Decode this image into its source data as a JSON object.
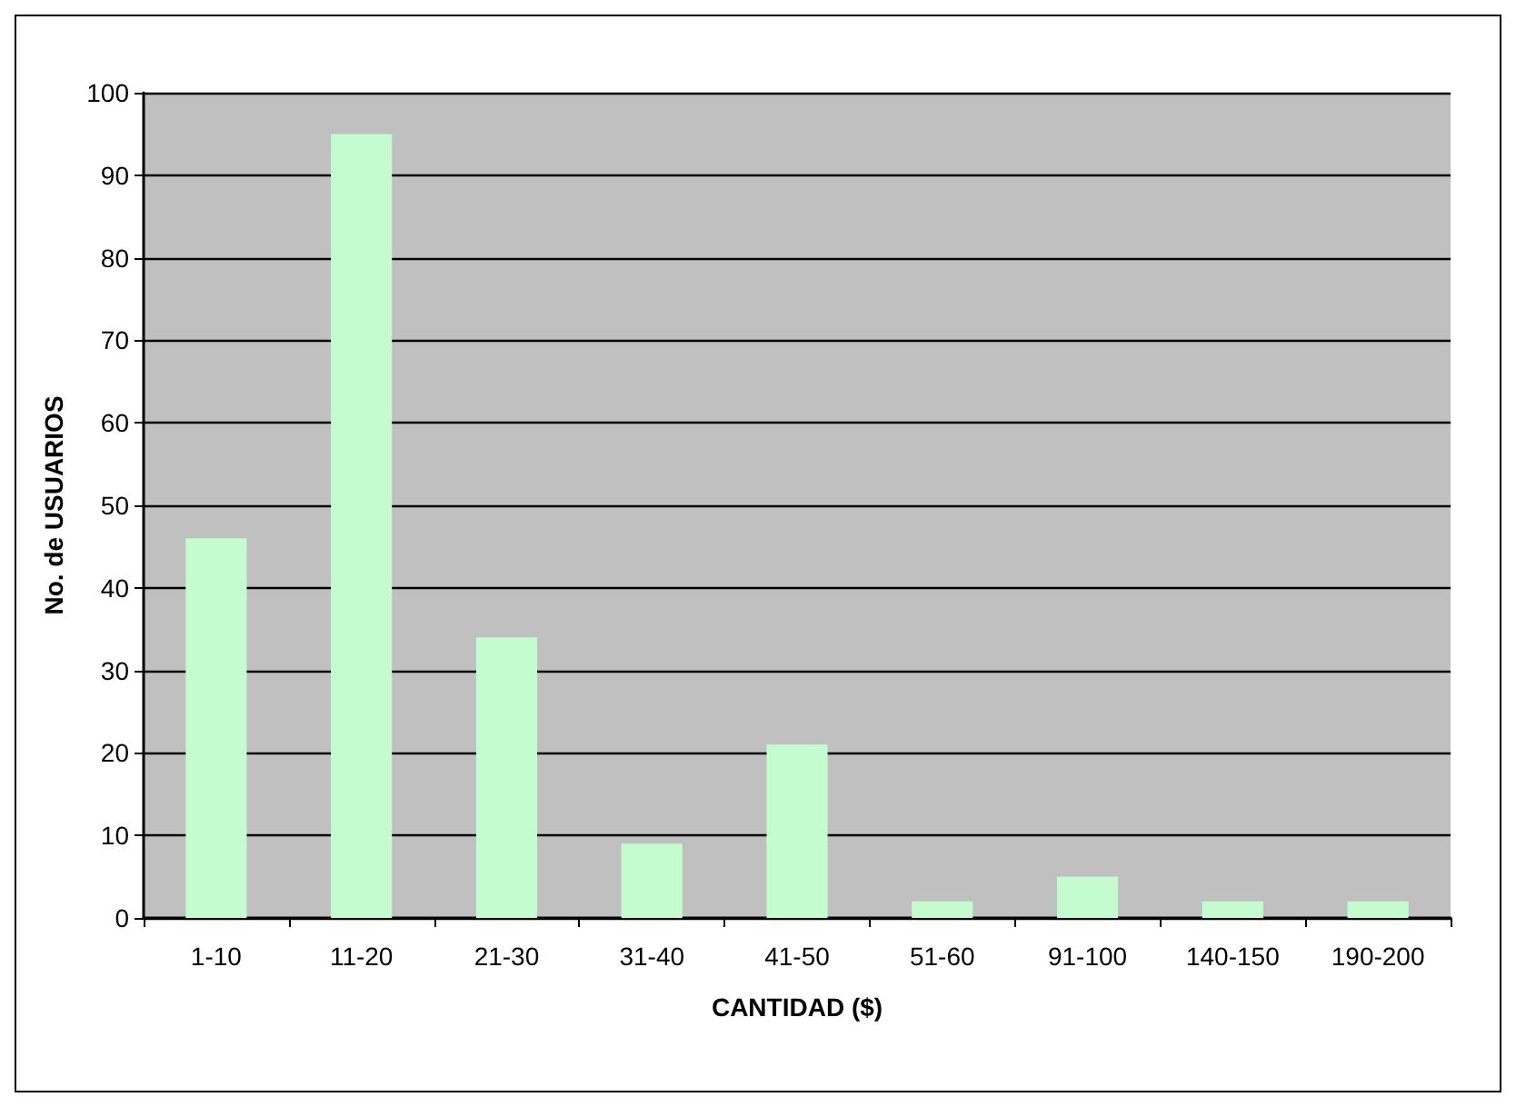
{
  "chart_data": {
    "type": "bar",
    "xlabel": "CANTIDAD ($)",
    "ylabel": "No. de USUARIOS",
    "categories": [
      "1-10",
      "11-20",
      "21-30",
      "31-40",
      "41-50",
      "51-60",
      "91-100",
      "140-150",
      "190-200"
    ],
    "values": [
      46,
      95,
      34,
      9,
      21,
      2,
      5,
      2,
      2
    ],
    "color": "#c4fcd0",
    "ylim": [
      0,
      100
    ],
    "yticks": [
      0,
      10,
      20,
      30,
      40,
      50,
      60,
      70,
      80,
      90,
      100
    ],
    "grid": "y"
  }
}
